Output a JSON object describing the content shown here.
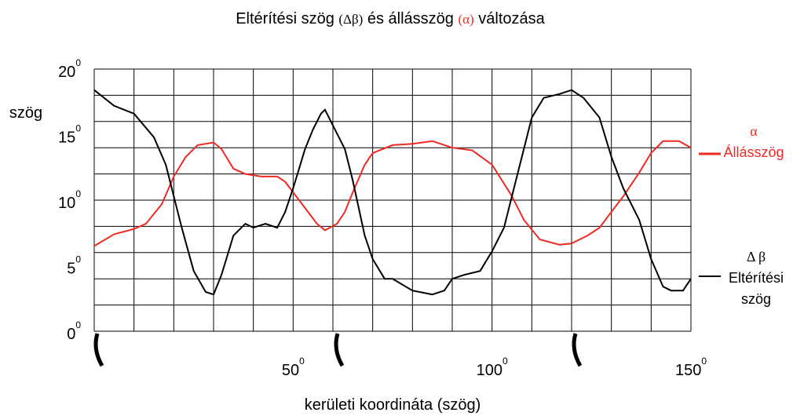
{
  "chart_data": {
    "type": "line",
    "title_parts": [
      {
        "text": "Eltérítési szög",
        "color": "#000000"
      },
      {
        "text": "(Δβ)",
        "color": "#000000",
        "small": true
      },
      {
        "text": "és állásszög",
        "color": "#000000"
      },
      {
        "text": "(α)",
        "color": "#ee2a24",
        "small": true
      },
      {
        "text": "változása",
        "color": "#000000"
      }
    ],
    "y_label": "szög",
    "x_label": "kerületi koordináta (szög)",
    "tick_suffix": "0",
    "xlim": [
      0,
      150
    ],
    "ylim": [
      0,
      20
    ],
    "xticks": [
      50,
      100,
      150
    ],
    "yticks": [
      0,
      5,
      10,
      15,
      20
    ],
    "xgrid": [
      0,
      10,
      20,
      30,
      40,
      50,
      60,
      70,
      80,
      90,
      100,
      110,
      120,
      130,
      140,
      150
    ],
    "ygrid": [
      0,
      2,
      4,
      6,
      8,
      10,
      12,
      14,
      16,
      18,
      20
    ],
    "grid": true,
    "series": [
      {
        "name": "Állásszög",
        "symbol": "α",
        "color": "#ee2a24",
        "x": [
          0,
          5,
          10,
          13,
          17,
          20,
          23,
          26,
          30,
          32,
          35,
          38,
          42,
          46,
          48,
          50,
          53,
          56,
          58,
          61,
          63,
          65,
          68,
          70,
          75,
          80,
          85,
          90,
          95,
          100,
          105,
          108,
          112,
          117,
          120,
          124,
          127,
          130,
          133,
          137,
          140,
          143,
          147,
          150
        ],
        "values": [
          6.5,
          7.4,
          7.8,
          8.2,
          9.7,
          11.8,
          13.3,
          14.2,
          14.4,
          13.9,
          12.4,
          12.0,
          11.8,
          11.8,
          11.4,
          10.6,
          9.4,
          8.2,
          7.7,
          8.2,
          9.1,
          10.6,
          12.7,
          13.6,
          14.2,
          14.3,
          14.5,
          14.0,
          13.8,
          12.7,
          10.3,
          8.5,
          7.0,
          6.6,
          6.7,
          7.3,
          7.9,
          9.1,
          10.3,
          12.1,
          13.6,
          14.5,
          14.5,
          14.0
        ]
      },
      {
        "name": "Eltérítési szög",
        "symbol": "Δ β",
        "color": "#000000",
        "x": [
          0,
          5,
          10,
          15,
          18,
          20,
          22,
          25,
          28,
          30,
          32,
          35,
          38,
          40,
          43,
          46,
          48,
          50,
          53,
          55,
          57,
          58,
          60,
          63,
          65,
          68,
          70,
          73,
          75,
          80,
          85,
          88,
          90,
          93,
          97,
          100,
          103,
          105,
          108,
          110,
          113,
          117,
          120,
          123,
          127,
          130,
          133,
          137,
          140,
          143,
          145,
          148,
          150
        ],
        "values": [
          18.4,
          17.2,
          16.6,
          14.8,
          12.7,
          10.3,
          7.9,
          4.6,
          3.0,
          2.8,
          4.3,
          7.3,
          8.2,
          7.9,
          8.2,
          7.9,
          9.1,
          10.9,
          13.9,
          15.4,
          16.6,
          16.9,
          15.7,
          13.9,
          11.5,
          7.3,
          5.5,
          4.0,
          4.0,
          3.1,
          2.8,
          3.1,
          4.0,
          4.3,
          4.6,
          6.1,
          7.9,
          10.3,
          13.9,
          16.3,
          17.8,
          18.1,
          18.4,
          17.8,
          16.3,
          13.3,
          10.9,
          8.5,
          5.5,
          3.4,
          3.1,
          3.1,
          4.0
        ]
      }
    ]
  }
}
